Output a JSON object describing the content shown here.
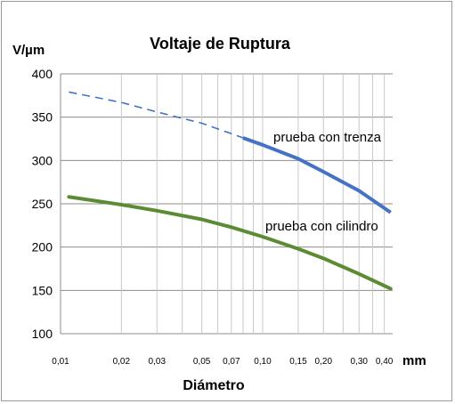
{
  "chart_data": {
    "type": "line",
    "title": "Voltaje de Ruptura",
    "ylabel": "V/µm",
    "xlabel": "Diámetro",
    "xunit": "mm",
    "xscale": "log",
    "xlim": [
      0.01,
      0.44
    ],
    "ylim": [
      100,
      400
    ],
    "yticks": [
      100,
      150,
      200,
      250,
      300,
      350,
      400
    ],
    "xticks": [
      {
        "value": 0.01,
        "label": "0,01"
      },
      {
        "value": 0.02,
        "label": "0,02"
      },
      {
        "value": 0.03,
        "label": "0,03"
      },
      {
        "value": 0.05,
        "label": "0,05"
      },
      {
        "value": 0.07,
        "label": "0,07"
      },
      {
        "value": 0.1,
        "label": "0,10"
      },
      {
        "value": 0.15,
        "label": "0,15"
      },
      {
        "value": 0.2,
        "label": "0,20"
      },
      {
        "value": 0.3,
        "label": "0,30"
      },
      {
        "value": 0.4,
        "label": "0,40"
      }
    ],
    "xgrid_minor": [
      0.02,
      0.03,
      0.04,
      0.05,
      0.06,
      0.07,
      0.08,
      0.09,
      0.1,
      0.15,
      0.2,
      0.25,
      0.3,
      0.35,
      0.4
    ],
    "grid": true,
    "series": [
      {
        "name": "prueba con trenza",
        "color": "#4472c4",
        "dashed_until": 0.08,
        "x": [
          0.011,
          0.02,
          0.03,
          0.05,
          0.07,
          0.08,
          0.1,
          0.15,
          0.2,
          0.3,
          0.43
        ],
        "y": [
          379,
          367,
          356,
          343,
          331,
          326,
          318,
          302,
          287,
          265,
          240
        ]
      },
      {
        "name": "prueba con cilindro",
        "color": "#5b8c33",
        "x": [
          0.011,
          0.02,
          0.03,
          0.05,
          0.07,
          0.1,
          0.15,
          0.2,
          0.3,
          0.43
        ],
        "y": [
          258,
          249,
          242,
          232,
          223,
          212,
          198,
          187,
          169,
          152
        ]
      }
    ]
  }
}
